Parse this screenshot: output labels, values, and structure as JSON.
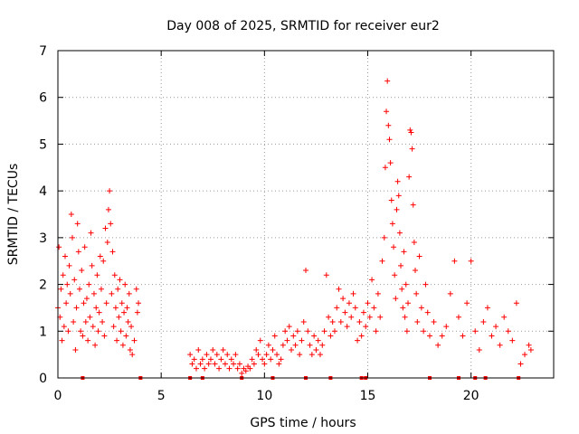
{
  "chart_data": {
    "type": "scatter",
    "title": "Day 008 of 2025, SRMTID for receiver eur2",
    "xlabel": "GPS time / hours",
    "ylabel": "SRMTID / TECUs",
    "xlim": [
      0,
      24
    ],
    "ylim": [
      0,
      7
    ],
    "xticks": [
      0,
      5,
      10,
      15,
      20
    ],
    "yticks": [
      0,
      1,
      2,
      3,
      4,
      5,
      6,
      7
    ],
    "xtick_labels": [
      "0",
      "5",
      "10",
      "15",
      "20"
    ],
    "ytick_labels": [
      "0",
      "1",
      "2",
      "3",
      "4",
      "5",
      "6",
      "7"
    ],
    "grid": true,
    "marker": "+",
    "color": "#ff0000",
    "series": [
      {
        "name": "SRMTID",
        "points": [
          [
            0.0,
            1.5
          ],
          [
            0.05,
            2.8
          ],
          [
            0.1,
            1.3
          ],
          [
            0.15,
            1.9
          ],
          [
            0.2,
            0.8
          ],
          [
            0.25,
            2.2
          ],
          [
            0.3,
            1.1
          ],
          [
            0.35,
            2.6
          ],
          [
            0.4,
            1.6
          ],
          [
            0.45,
            2.0
          ],
          [
            0.5,
            1.0
          ],
          [
            0.55,
            2.4
          ],
          [
            0.6,
            1.8
          ],
          [
            0.65,
            3.5
          ],
          [
            0.7,
            3.0
          ],
          [
            0.75,
            1.2
          ],
          [
            0.8,
            2.1
          ],
          [
            0.85,
            0.6
          ],
          [
            0.9,
            1.5
          ],
          [
            0.95,
            3.3
          ],
          [
            1.0,
            2.7
          ],
          [
            1.05,
            1.9
          ],
          [
            1.1,
            1.0
          ],
          [
            1.15,
            2.3
          ],
          [
            1.2,
            0.9
          ],
          [
            1.25,
            1.6
          ],
          [
            1.3,
            2.8
          ],
          [
            1.35,
            1.2
          ],
          [
            1.4,
            1.7
          ],
          [
            1.45,
            0.8
          ],
          [
            1.5,
            2.0
          ],
          [
            1.55,
            1.3
          ],
          [
            1.6,
            3.1
          ],
          [
            1.65,
            2.4
          ],
          [
            1.7,
            1.1
          ],
          [
            1.75,
            1.8
          ],
          [
            1.8,
            0.7
          ],
          [
            1.85,
            1.5
          ],
          [
            1.9,
            2.2
          ],
          [
            1.95,
            1.0
          ],
          [
            2.0,
            1.4
          ],
          [
            2.05,
            2.6
          ],
          [
            2.1,
            1.9
          ],
          [
            2.15,
            1.2
          ],
          [
            2.2,
            2.5
          ],
          [
            2.25,
            0.9
          ],
          [
            2.3,
            3.2
          ],
          [
            2.35,
            1.6
          ],
          [
            2.4,
            2.9
          ],
          [
            2.45,
            3.6
          ],
          [
            2.5,
            4.0
          ],
          [
            2.55,
            3.3
          ],
          [
            2.6,
            1.8
          ],
          [
            2.65,
            2.7
          ],
          [
            2.7,
            1.1
          ],
          [
            2.75,
            2.2
          ],
          [
            2.8,
            1.5
          ],
          [
            2.85,
            0.8
          ],
          [
            2.9,
            1.9
          ],
          [
            2.95,
            1.3
          ],
          [
            3.0,
            2.1
          ],
          [
            3.05,
            1.0
          ],
          [
            3.1,
            1.6
          ],
          [
            3.15,
            0.7
          ],
          [
            3.2,
            1.4
          ],
          [
            3.25,
            2.0
          ],
          [
            3.3,
            0.9
          ],
          [
            3.35,
            1.5
          ],
          [
            3.4,
            1.2
          ],
          [
            3.45,
            1.8
          ],
          [
            3.5,
            0.6
          ],
          [
            3.55,
            1.1
          ],
          [
            3.6,
            0.5
          ],
          [
            3.7,
            0.8
          ],
          [
            3.8,
            1.9
          ],
          [
            3.85,
            1.4
          ],
          [
            3.9,
            1.6
          ],
          [
            6.4,
            0.5
          ],
          [
            6.5,
            0.3
          ],
          [
            6.6,
            0.4
          ],
          [
            6.7,
            0.2
          ],
          [
            6.8,
            0.6
          ],
          [
            6.9,
            0.3
          ],
          [
            7.0,
            0.4
          ],
          [
            7.1,
            0.2
          ],
          [
            7.2,
            0.5
          ],
          [
            7.3,
            0.3
          ],
          [
            7.4,
            0.4
          ],
          [
            7.5,
            0.6
          ],
          [
            7.6,
            0.3
          ],
          [
            7.7,
            0.5
          ],
          [
            7.8,
            0.2
          ],
          [
            7.9,
            0.4
          ],
          [
            8.0,
            0.6
          ],
          [
            8.1,
            0.3
          ],
          [
            8.2,
            0.5
          ],
          [
            8.3,
            0.2
          ],
          [
            8.4,
            0.4
          ],
          [
            8.5,
            0.3
          ],
          [
            8.6,
            0.5
          ],
          [
            8.7,
            0.2
          ],
          [
            8.8,
            0.3
          ],
          [
            8.9,
            0.1
          ],
          [
            9.0,
            0.2
          ],
          [
            9.1,
            0.15
          ],
          [
            9.2,
            0.25
          ],
          [
            9.3,
            0.2
          ],
          [
            9.4,
            0.4
          ],
          [
            9.5,
            0.3
          ],
          [
            9.6,
            0.6
          ],
          [
            9.7,
            0.5
          ],
          [
            9.8,
            0.8
          ],
          [
            9.9,
            0.4
          ],
          [
            10.0,
            0.3
          ],
          [
            10.1,
            0.5
          ],
          [
            10.2,
            0.7
          ],
          [
            10.3,
            0.4
          ],
          [
            10.4,
            0.6
          ],
          [
            10.5,
            0.9
          ],
          [
            10.6,
            0.5
          ],
          [
            10.7,
            0.3
          ],
          [
            10.8,
            0.4
          ],
          [
            10.9,
            0.7
          ],
          [
            11.0,
            1.0
          ],
          [
            11.1,
            0.8
          ],
          [
            11.2,
            1.1
          ],
          [
            11.3,
            0.6
          ],
          [
            11.4,
            0.9
          ],
          [
            11.5,
            0.7
          ],
          [
            11.6,
            1.0
          ],
          [
            11.7,
            0.5
          ],
          [
            11.8,
            0.8
          ],
          [
            11.9,
            1.2
          ],
          [
            12.0,
            2.3
          ],
          [
            12.1,
            1.0
          ],
          [
            12.2,
            0.7
          ],
          [
            12.3,
            0.5
          ],
          [
            12.4,
            0.9
          ],
          [
            12.5,
            0.6
          ],
          [
            12.6,
            0.8
          ],
          [
            12.7,
            0.5
          ],
          [
            12.8,
            0.7
          ],
          [
            12.9,
            1.0
          ],
          [
            13.0,
            2.2
          ],
          [
            13.1,
            1.3
          ],
          [
            13.2,
            0.9
          ],
          [
            13.3,
            1.2
          ],
          [
            13.4,
            1.0
          ],
          [
            13.5,
            1.5
          ],
          [
            13.6,
            1.9
          ],
          [
            13.7,
            1.2
          ],
          [
            13.8,
            1.7
          ],
          [
            13.9,
            1.4
          ],
          [
            14.0,
            1.1
          ],
          [
            14.1,
            1.6
          ],
          [
            14.2,
            1.3
          ],
          [
            14.3,
            1.8
          ],
          [
            14.4,
            1.5
          ],
          [
            14.5,
            0.8
          ],
          [
            14.6,
            1.2
          ],
          [
            14.7,
            0.9
          ],
          [
            14.8,
            1.4
          ],
          [
            14.9,
            1.1
          ],
          [
            15.0,
            1.6
          ],
          [
            15.1,
            1.3
          ],
          [
            15.2,
            2.1
          ],
          [
            15.3,
            1.5
          ],
          [
            15.4,
            1.0
          ],
          [
            15.5,
            1.8
          ],
          [
            15.6,
            1.3
          ],
          [
            15.7,
            2.5
          ],
          [
            15.8,
            3.0
          ],
          [
            15.85,
            4.5
          ],
          [
            15.9,
            5.7
          ],
          [
            15.95,
            6.35
          ],
          [
            16.0,
            5.4
          ],
          [
            16.05,
            5.1
          ],
          [
            16.1,
            4.6
          ],
          [
            16.15,
            3.8
          ],
          [
            16.2,
            3.3
          ],
          [
            16.25,
            2.8
          ],
          [
            16.3,
            2.2
          ],
          [
            16.35,
            1.7
          ],
          [
            16.4,
            3.6
          ],
          [
            16.45,
            4.2
          ],
          [
            16.5,
            3.9
          ],
          [
            16.55,
            3.1
          ],
          [
            16.6,
            2.4
          ],
          [
            16.65,
            1.9
          ],
          [
            16.7,
            1.5
          ],
          [
            16.75,
            2.7
          ],
          [
            16.8,
            1.3
          ],
          [
            16.85,
            2.0
          ],
          [
            16.9,
            1.0
          ],
          [
            16.95,
            1.6
          ],
          [
            17.0,
            4.3
          ],
          [
            17.05,
            5.3
          ],
          [
            17.1,
            5.25
          ],
          [
            17.15,
            4.9
          ],
          [
            17.2,
            3.7
          ],
          [
            17.25,
            2.9
          ],
          [
            17.3,
            2.3
          ],
          [
            17.35,
            1.8
          ],
          [
            17.4,
            1.2
          ],
          [
            17.5,
            2.6
          ],
          [
            17.6,
            1.5
          ],
          [
            17.7,
            1.0
          ],
          [
            17.8,
            2.0
          ],
          [
            17.9,
            1.4
          ],
          [
            18.0,
            0.9
          ],
          [
            18.2,
            1.2
          ],
          [
            18.4,
            0.7
          ],
          [
            18.6,
            0.9
          ],
          [
            18.8,
            1.1
          ],
          [
            19.0,
            1.8
          ],
          [
            19.2,
            2.5
          ],
          [
            19.4,
            1.3
          ],
          [
            19.6,
            0.9
          ],
          [
            19.8,
            1.6
          ],
          [
            20.0,
            2.5
          ],
          [
            20.2,
            1.0
          ],
          [
            20.4,
            0.6
          ],
          [
            20.6,
            1.2
          ],
          [
            20.8,
            1.5
          ],
          [
            21.0,
            0.9
          ],
          [
            21.2,
            1.1
          ],
          [
            21.4,
            0.7
          ],
          [
            21.6,
            1.3
          ],
          [
            21.8,
            1.0
          ],
          [
            22.0,
            0.8
          ],
          [
            22.2,
            1.6
          ],
          [
            22.4,
            0.3
          ],
          [
            22.6,
            0.5
          ],
          [
            22.8,
            0.7
          ],
          [
            22.9,
            0.6
          ]
        ]
      }
    ],
    "baseline_marks_x": [
      1.2,
      4.0,
      6.4,
      7.0,
      8.9,
      10.4,
      12.0,
      13.2,
      14.7,
      14.9,
      18.0,
      19.4,
      20.2,
      20.7,
      22.3
    ]
  }
}
